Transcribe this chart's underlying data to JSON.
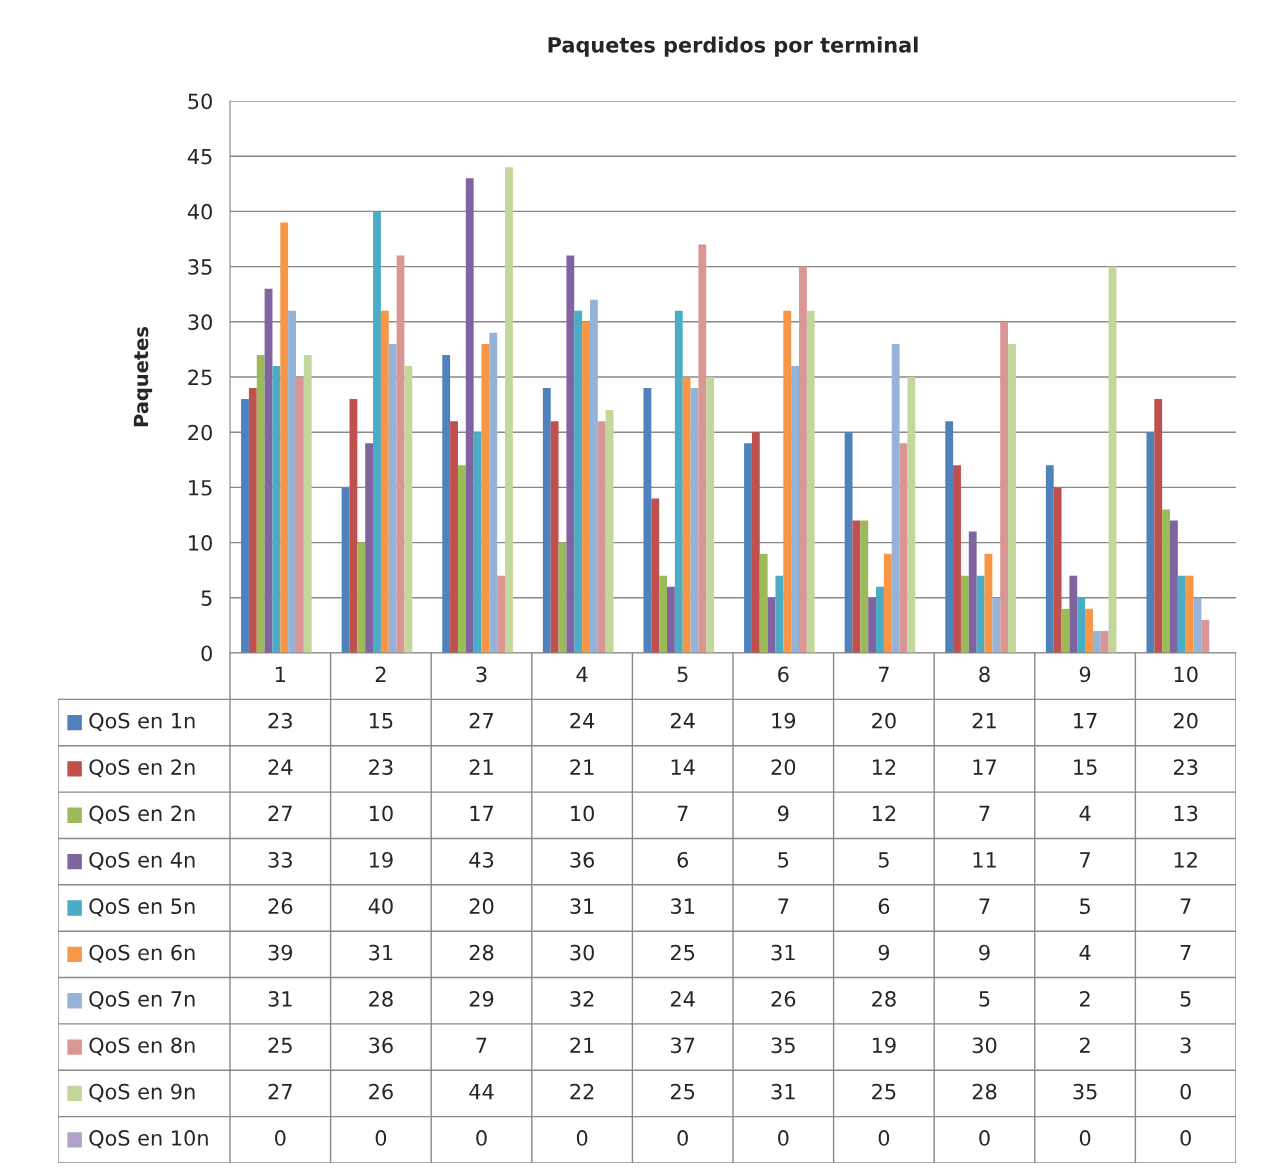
{
  "chart_data": {
    "type": "bar",
    "title": "Paquetes perdidos por terminal",
    "ylabel": "Paquetes",
    "categories": [
      "1",
      "2",
      "3",
      "4",
      "5",
      "6",
      "7",
      "8",
      "9",
      "10"
    ],
    "ylim": [
      0,
      50
    ],
    "yticks": [
      0,
      5,
      10,
      15,
      20,
      25,
      30,
      35,
      40,
      45,
      50
    ],
    "grid": "y",
    "legend": "bottom",
    "data_labels": true,
    "series": [
      {
        "name": "QoS en 1n",
        "color": "#4f81bd",
        "values": [
          23,
          15,
          27,
          24,
          24,
          19,
          20,
          21,
          17,
          20
        ]
      },
      {
        "name": "QoS en 2n",
        "color": "#c0504d",
        "values": [
          24,
          23,
          21,
          21,
          14,
          20,
          12,
          17,
          15,
          23
        ]
      },
      {
        "name": "QoS en 2n",
        "color": "#9bbb59",
        "values": [
          27,
          10,
          17,
          10,
          7,
          9,
          12,
          7,
          4,
          13
        ]
      },
      {
        "name": "QoS en 4n",
        "color": "#8064a2",
        "values": [
          33,
          19,
          43,
          36,
          6,
          5,
          5,
          11,
          7,
          12
        ]
      },
      {
        "name": "QoS en 5n",
        "color": "#4bacc6",
        "values": [
          26,
          40,
          20,
          31,
          31,
          7,
          6,
          7,
          5,
          7
        ]
      },
      {
        "name": "QoS en 6n",
        "color": "#f79646",
        "values": [
          39,
          31,
          28,
          30,
          25,
          31,
          9,
          9,
          4,
          7
        ]
      },
      {
        "name": "QoS en 7n",
        "color": "#95b3d7",
        "values": [
          31,
          28,
          29,
          32,
          24,
          26,
          28,
          5,
          2,
          5
        ]
      },
      {
        "name": "QoS en 8n",
        "color": "#d99694",
        "values": [
          25,
          36,
          7,
          21,
          37,
          35,
          19,
          30,
          2,
          3
        ]
      },
      {
        "name": "QoS en 9n",
        "color": "#c3d69b",
        "values": [
          27,
          26,
          44,
          22,
          25,
          31,
          25,
          28,
          35,
          0
        ]
      },
      {
        "name": "QoS en 10n",
        "color": "#b3a2c7",
        "values": [
          0,
          0,
          0,
          0,
          0,
          0,
          0,
          0,
          0,
          0
        ]
      }
    ]
  }
}
